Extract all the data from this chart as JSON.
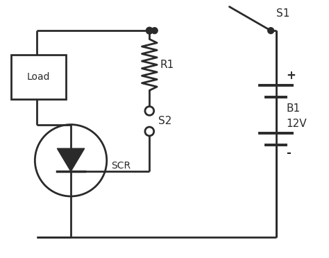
{
  "bg_color": "#ffffff",
  "line_color": "#2a2a2a",
  "line_width": 2.0,
  "fig_width": 4.74,
  "fig_height": 3.72,
  "dpi": 100,
  "labels": {
    "S1": "S1",
    "R1": "R1",
    "S2": "S2",
    "SCR": "SCR",
    "Load": "Load",
    "B1": "B1",
    "voltage": "12V",
    "plus": "+",
    "minus": "-"
  }
}
